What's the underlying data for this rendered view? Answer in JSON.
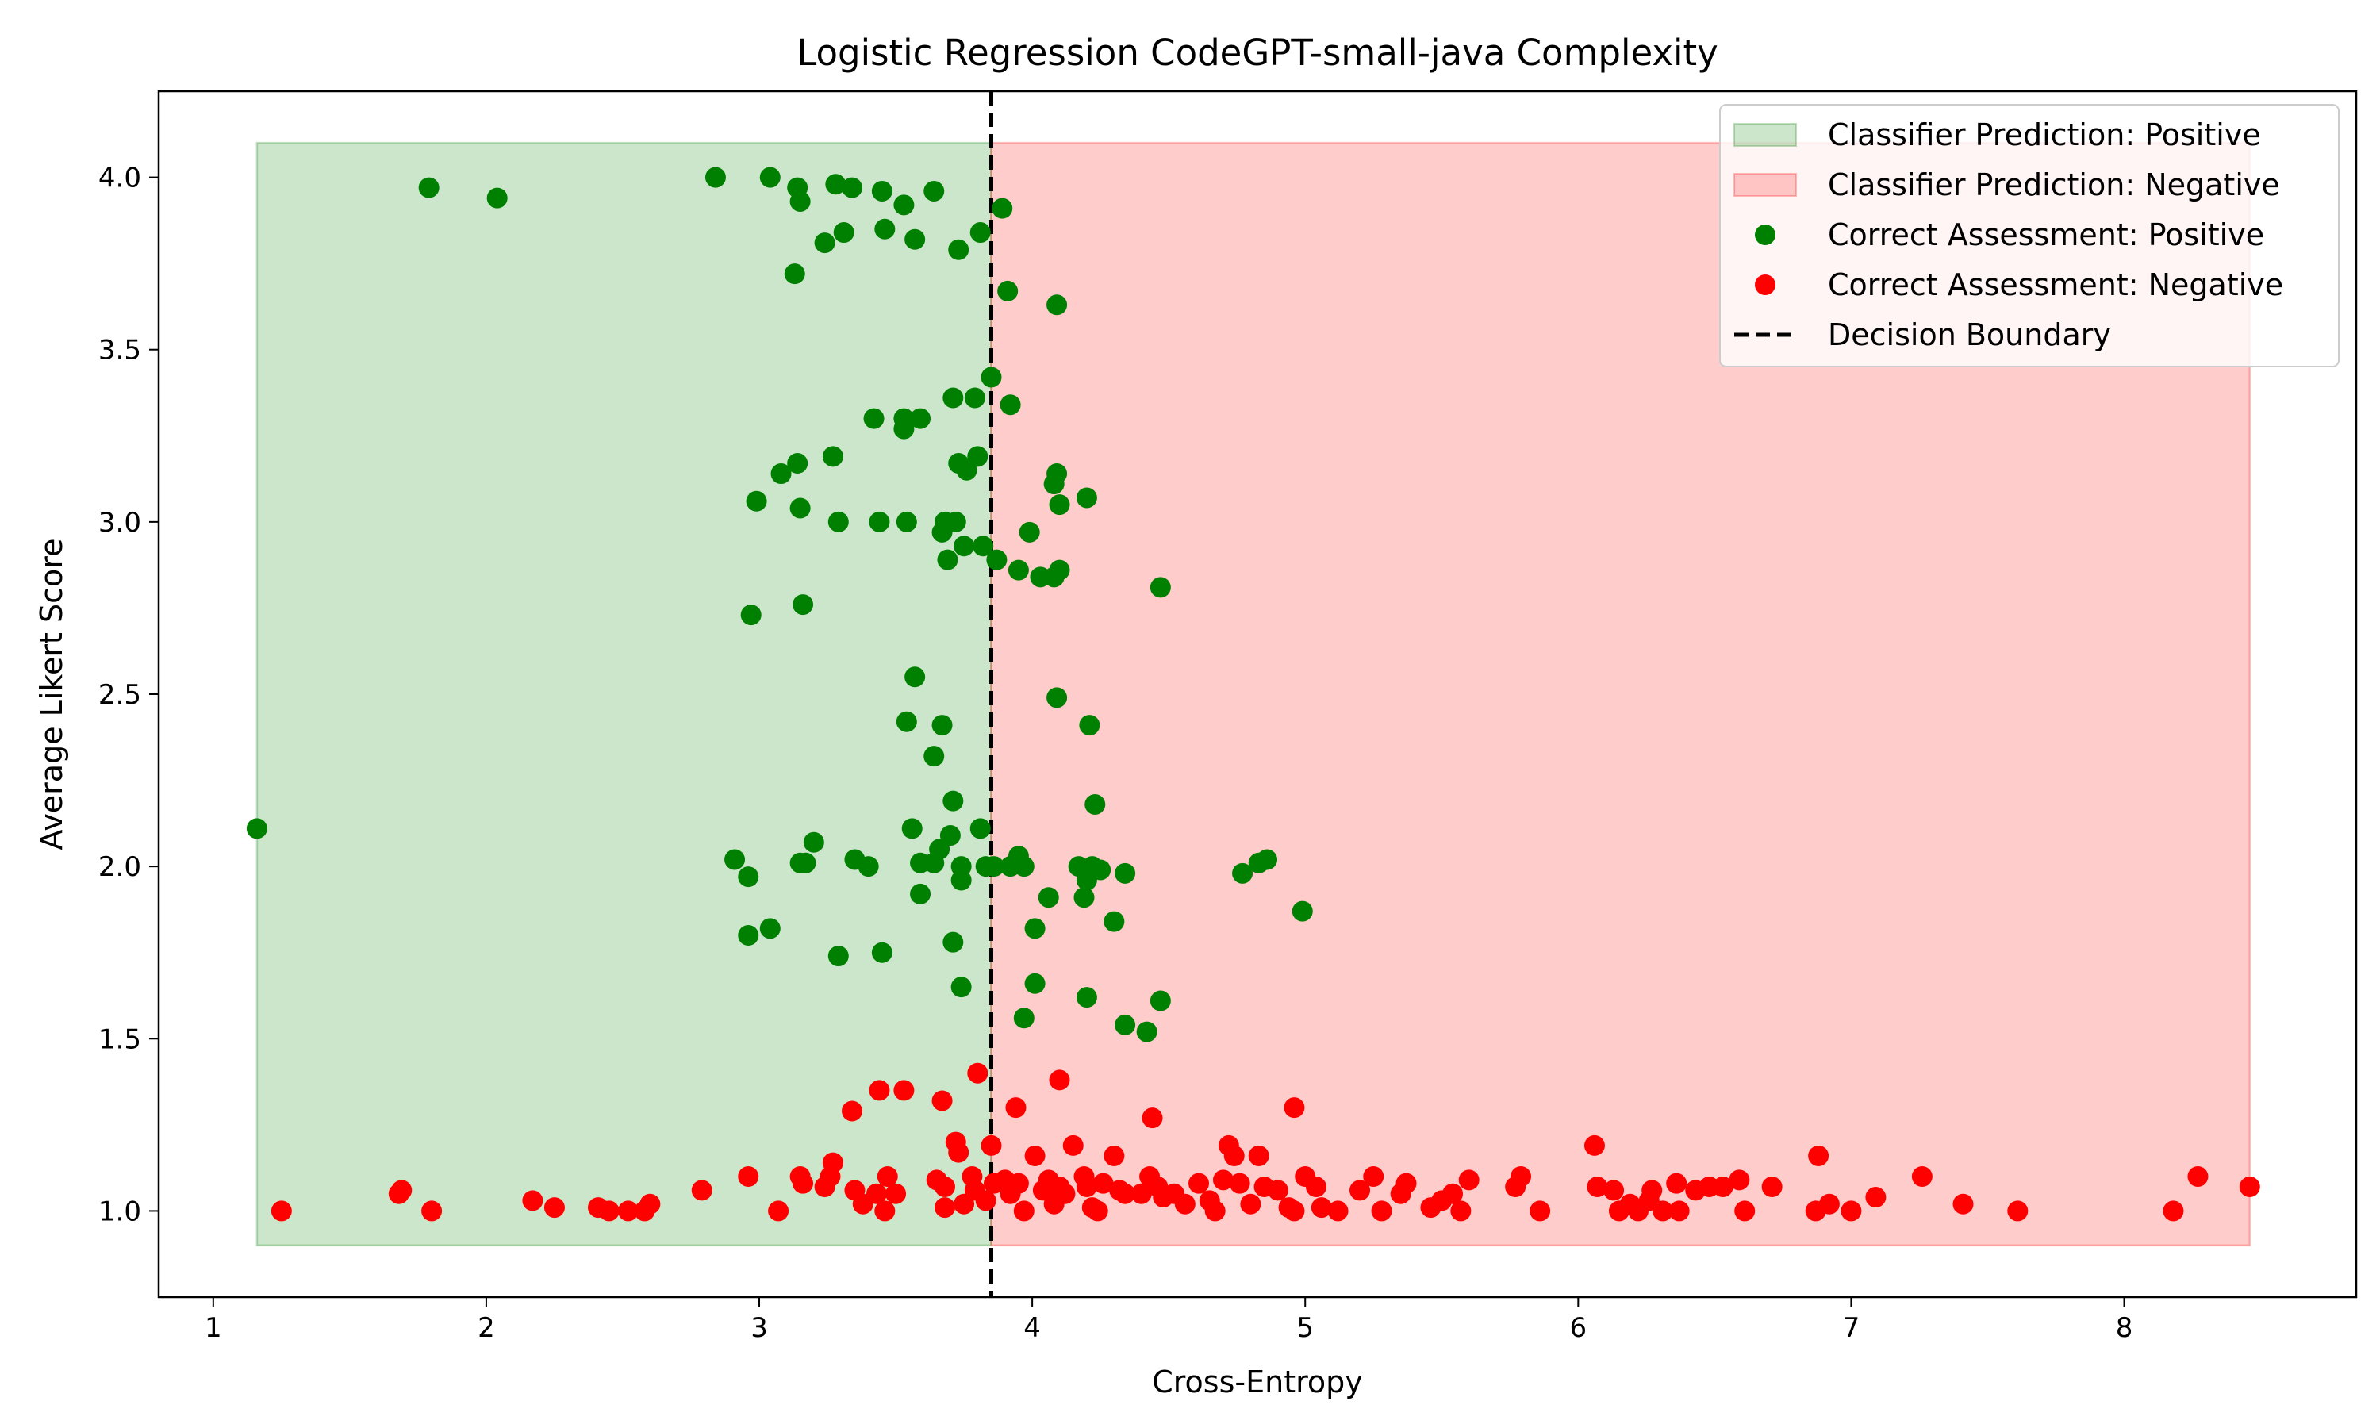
{
  "chart_data": {
    "type": "scatter",
    "title": "Logistic Regression CodeGPT-small-java Complexity",
    "xlabel": "Cross-Entropy",
    "ylabel": "Average Likert Score",
    "xlim": [
      0.8,
      8.85
    ],
    "ylim": [
      0.75,
      4.25
    ],
    "xticks": [
      1,
      2,
      3,
      4,
      5,
      6,
      7,
      8
    ],
    "yticks": [
      1.0,
      1.5,
      2.0,
      2.5,
      3.0,
      3.5,
      4.0
    ],
    "ytick_labels": [
      "1.0",
      "1.5",
      "2.0",
      "2.5",
      "3.0",
      "3.5",
      "4.0"
    ],
    "decision_boundary": 3.85,
    "regions": [
      {
        "name": "Classifier Prediction: Positive",
        "x": [
          1.16,
          3.85
        ],
        "y": [
          0.9,
          4.1
        ],
        "color": "#008000"
      },
      {
        "name": "Classifier Prediction: Negative",
        "x": [
          3.85,
          8.46
        ],
        "y": [
          0.9,
          4.1
        ],
        "color": "#ff0000"
      }
    ],
    "legend_position": "upper right",
    "legend": [
      {
        "label": "Classifier Prediction: Positive",
        "kind": "patch",
        "color": "#008000"
      },
      {
        "label": "Classifier Prediction: Negative",
        "kind": "patch",
        "color": "#ff0000"
      },
      {
        "label": "Correct Assessment: Positive",
        "kind": "marker",
        "color": "#008000"
      },
      {
        "label": "Correct Assessment: Negative",
        "kind": "marker",
        "color": "#ff0000"
      },
      {
        "label": "Decision Boundary",
        "kind": "dashed-line",
        "color": "#000000"
      }
    ],
    "series": [
      {
        "name": "Correct Assessment: Positive",
        "color": "#008000",
        "points": [
          [
            1.79,
            3.97
          ],
          [
            2.04,
            3.94
          ],
          [
            2.84,
            4.0
          ],
          [
            3.04,
            4.0
          ],
          [
            3.14,
            3.97
          ],
          [
            3.15,
            3.93
          ],
          [
            3.28,
            3.98
          ],
          [
            3.34,
            3.97
          ],
          [
            3.45,
            3.96
          ],
          [
            3.53,
            3.92
          ],
          [
            3.64,
            3.96
          ],
          [
            3.89,
            3.91
          ],
          [
            3.24,
            3.81
          ],
          [
            3.31,
            3.84
          ],
          [
            3.46,
            3.85
          ],
          [
            3.57,
            3.82
          ],
          [
            3.73,
            3.79
          ],
          [
            3.81,
            3.84
          ],
          [
            3.13,
            3.72
          ],
          [
            3.91,
            3.67
          ],
          [
            4.09,
            3.63
          ],
          [
            3.85,
            3.42
          ],
          [
            3.71,
            3.36
          ],
          [
            3.79,
            3.36
          ],
          [
            3.92,
            3.34
          ],
          [
            3.42,
            3.3
          ],
          [
            3.53,
            3.3
          ],
          [
            3.59,
            3.3
          ],
          [
            3.53,
            3.27
          ],
          [
            3.27,
            3.19
          ],
          [
            3.14,
            3.17
          ],
          [
            3.08,
            3.14
          ],
          [
            3.73,
            3.17
          ],
          [
            3.76,
            3.15
          ],
          [
            3.8,
            3.19
          ],
          [
            4.09,
            3.14
          ],
          [
            4.08,
            3.11
          ],
          [
            4.1,
            3.05
          ],
          [
            4.2,
            3.07
          ],
          [
            2.99,
            3.06
          ],
          [
            3.15,
            3.04
          ],
          [
            3.29,
            3.0
          ],
          [
            3.44,
            3.0
          ],
          [
            3.54,
            3.0
          ],
          [
            3.67,
            2.97
          ],
          [
            3.68,
            3.0
          ],
          [
            3.72,
            3.0
          ],
          [
            3.69,
            2.89
          ],
          [
            3.75,
            2.93
          ],
          [
            3.82,
            2.93
          ],
          [
            3.87,
            2.89
          ],
          [
            3.95,
            2.86
          ],
          [
            3.99,
            2.97
          ],
          [
            4.03,
            2.84
          ],
          [
            4.08,
            2.84
          ],
          [
            4.1,
            2.86
          ],
          [
            4.47,
            2.81
          ],
          [
            2.97,
            2.73
          ],
          [
            3.16,
            2.76
          ],
          [
            3.57,
            2.55
          ],
          [
            3.54,
            2.42
          ],
          [
            3.67,
            2.41
          ],
          [
            3.64,
            2.32
          ],
          [
            4.09,
            2.49
          ],
          [
            4.21,
            2.41
          ],
          [
            1.16,
            2.11
          ],
          [
            3.71,
            2.19
          ],
          [
            3.56,
            2.11
          ],
          [
            3.7,
            2.09
          ],
          [
            3.81,
            2.11
          ],
          [
            4.23,
            2.18
          ],
          [
            2.91,
            2.02
          ],
          [
            2.96,
            1.97
          ],
          [
            3.15,
            2.01
          ],
          [
            3.17,
            2.01
          ],
          [
            3.2,
            2.07
          ],
          [
            3.35,
            2.02
          ],
          [
            3.4,
            2.0
          ],
          [
            3.59,
            2.01
          ],
          [
            3.64,
            2.01
          ],
          [
            3.66,
            2.05
          ],
          [
            3.74,
            2.0
          ],
          [
            3.74,
            1.96
          ],
          [
            3.83,
            2.0
          ],
          [
            3.86,
            2.0
          ],
          [
            3.92,
            2.0
          ],
          [
            3.95,
            2.03
          ],
          [
            3.97,
            2.0
          ],
          [
            4.06,
            1.91
          ],
          [
            4.17,
            2.0
          ],
          [
            4.2,
            1.96
          ],
          [
            4.19,
            1.91
          ],
          [
            4.22,
            2.0
          ],
          [
            4.25,
            1.99
          ],
          [
            4.34,
            1.98
          ],
          [
            4.77,
            1.98
          ],
          [
            4.83,
            2.01
          ],
          [
            4.86,
            2.02
          ],
          [
            3.59,
            1.92
          ],
          [
            2.96,
            1.8
          ],
          [
            3.04,
            1.82
          ],
          [
            3.71,
            1.78
          ],
          [
            4.01,
            1.82
          ],
          [
            4.3,
            1.84
          ],
          [
            4.99,
            1.87
          ],
          [
            3.29,
            1.74
          ],
          [
            3.45,
            1.75
          ],
          [
            3.74,
            1.65
          ],
          [
            4.01,
            1.66
          ],
          [
            4.2,
            1.62
          ],
          [
            3.97,
            1.56
          ],
          [
            4.34,
            1.54
          ],
          [
            4.42,
            1.52
          ],
          [
            4.47,
            1.61
          ]
        ]
      },
      {
        "name": "Correct Assessment: Negative",
        "color": "#ff0000",
        "points": [
          [
            1.25,
            1.0
          ],
          [
            1.68,
            1.05
          ],
          [
            1.69,
            1.06
          ],
          [
            1.8,
            1.0
          ],
          [
            2.17,
            1.03
          ],
          [
            2.25,
            1.01
          ],
          [
            2.41,
            1.01
          ],
          [
            2.45,
            1.0
          ],
          [
            2.52,
            1.0
          ],
          [
            2.58,
            1.0
          ],
          [
            2.6,
            1.02
          ],
          [
            2.79,
            1.06
          ],
          [
            2.96,
            1.1
          ],
          [
            3.07,
            1.0
          ],
          [
            3.15,
            1.1
          ],
          [
            3.16,
            1.08
          ],
          [
            3.24,
            1.07
          ],
          [
            3.26,
            1.1
          ],
          [
            3.27,
            1.14
          ],
          [
            3.35,
            1.06
          ],
          [
            3.38,
            1.02
          ],
          [
            3.43,
            1.05
          ],
          [
            3.46,
            1.0
          ],
          [
            3.47,
            1.1
          ],
          [
            3.5,
            1.05
          ],
          [
            3.65,
            1.09
          ],
          [
            3.68,
            1.07
          ],
          [
            3.68,
            1.01
          ],
          [
            3.72,
            1.2
          ],
          [
            3.73,
            1.17
          ],
          [
            3.75,
            1.02
          ],
          [
            3.78,
            1.1
          ],
          [
            3.79,
            1.06
          ],
          [
            3.83,
            1.03
          ],
          [
            3.85,
            1.19
          ],
          [
            3.86,
            1.08
          ],
          [
            3.9,
            1.09
          ],
          [
            3.92,
            1.05
          ],
          [
            3.95,
            1.08
          ],
          [
            3.97,
            1.0
          ],
          [
            4.01,
            1.16
          ],
          [
            4.04,
            1.06
          ],
          [
            4.06,
            1.09
          ],
          [
            4.08,
            1.02
          ],
          [
            4.1,
            1.07
          ],
          [
            4.12,
            1.05
          ],
          [
            4.15,
            1.19
          ],
          [
            4.19,
            1.1
          ],
          [
            4.2,
            1.07
          ],
          [
            4.22,
            1.01
          ],
          [
            4.24,
            1.0
          ],
          [
            4.26,
            1.08
          ],
          [
            4.3,
            1.16
          ],
          [
            4.32,
            1.06
          ],
          [
            4.34,
            1.05
          ],
          [
            4.4,
            1.05
          ],
          [
            4.43,
            1.1
          ],
          [
            4.46,
            1.07
          ],
          [
            4.48,
            1.04
          ],
          [
            4.52,
            1.05
          ],
          [
            4.56,
            1.02
          ],
          [
            4.61,
            1.08
          ],
          [
            4.65,
            1.03
          ],
          [
            4.67,
            1.0
          ],
          [
            4.7,
            1.09
          ],
          [
            4.72,
            1.19
          ],
          [
            4.74,
            1.16
          ],
          [
            4.76,
            1.08
          ],
          [
            4.8,
            1.02
          ],
          [
            4.83,
            1.16
          ],
          [
            4.85,
            1.07
          ],
          [
            4.9,
            1.06
          ],
          [
            4.94,
            1.01
          ],
          [
            4.96,
            1.0
          ],
          [
            5.0,
            1.1
          ],
          [
            5.04,
            1.07
          ],
          [
            5.06,
            1.01
          ],
          [
            5.12,
            1.0
          ],
          [
            5.2,
            1.06
          ],
          [
            5.25,
            1.1
          ],
          [
            5.28,
            1.0
          ],
          [
            5.35,
            1.05
          ],
          [
            5.37,
            1.08
          ],
          [
            5.46,
            1.01
          ],
          [
            5.5,
            1.03
          ],
          [
            5.54,
            1.05
          ],
          [
            5.57,
            1.0
          ],
          [
            5.6,
            1.09
          ],
          [
            5.77,
            1.07
          ],
          [
            5.79,
            1.1
          ],
          [
            5.86,
            1.0
          ],
          [
            6.06,
            1.19
          ],
          [
            6.07,
            1.07
          ],
          [
            6.13,
            1.06
          ],
          [
            6.15,
            1.0
          ],
          [
            6.19,
            1.02
          ],
          [
            6.22,
            1.0
          ],
          [
            6.26,
            1.03
          ],
          [
            6.27,
            1.06
          ],
          [
            6.31,
            1.0
          ],
          [
            6.36,
            1.08
          ],
          [
            6.37,
            1.0
          ],
          [
            6.43,
            1.06
          ],
          [
            6.48,
            1.07
          ],
          [
            6.53,
            1.07
          ],
          [
            6.59,
            1.09
          ],
          [
            6.61,
            1.0
          ],
          [
            6.71,
            1.07
          ],
          [
            6.87,
            1.0
          ],
          [
            6.88,
            1.16
          ],
          [
            6.92,
            1.02
          ],
          [
            7.0,
            1.0
          ],
          [
            7.09,
            1.04
          ],
          [
            7.26,
            1.1
          ],
          [
            7.41,
            1.02
          ],
          [
            7.61,
            1.0
          ],
          [
            8.18,
            1.0
          ],
          [
            8.27,
            1.1
          ],
          [
            8.46,
            1.07
          ],
          [
            3.34,
            1.29
          ],
          [
            3.44,
            1.35
          ],
          [
            3.53,
            1.35
          ],
          [
            3.67,
            1.32
          ],
          [
            3.8,
            1.4
          ],
          [
            3.94,
            1.3
          ],
          [
            4.1,
            1.38
          ],
          [
            4.44,
            1.27
          ],
          [
            4.96,
            1.3
          ]
        ]
      }
    ]
  }
}
